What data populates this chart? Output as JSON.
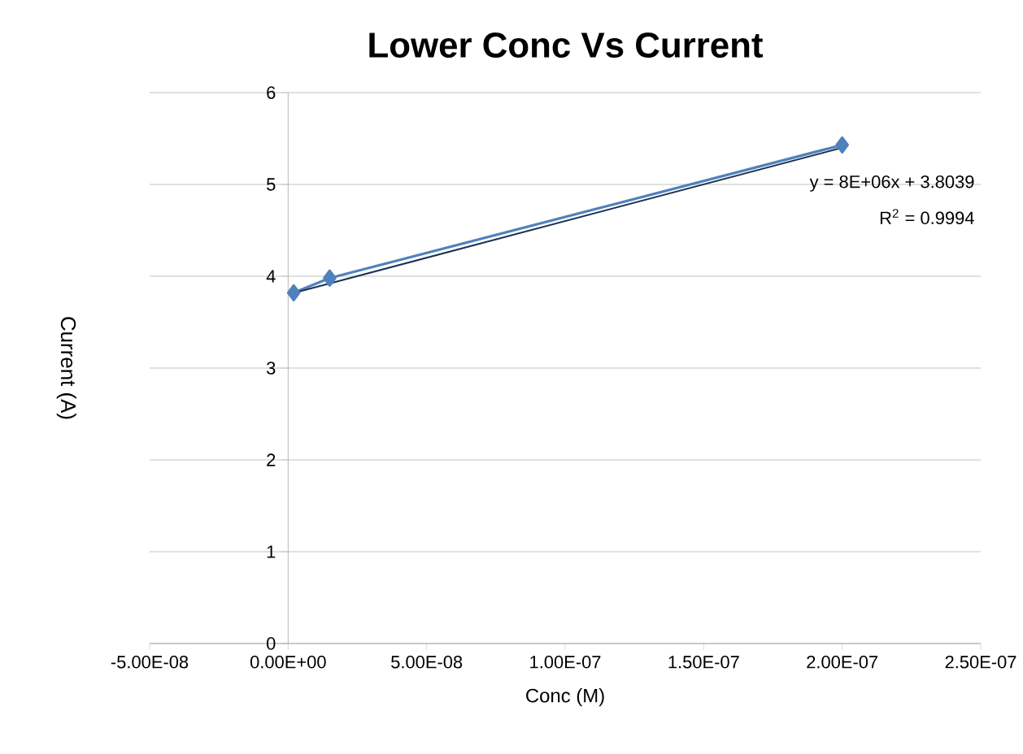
{
  "chart_data": {
    "type": "line",
    "title": "Lower Conc Vs Current",
    "xlabel": "Conc (M)",
    "ylabel": "Current (A)",
    "series": [
      {
        "color": "#4f81bd",
        "x": [
          2e-09,
          1.5e-08,
          2e-07
        ],
        "values": [
          3.82,
          3.98,
          5.43
        ],
        "marker": "diamond"
      },
      {
        "type": "line",
        "color": "#1f3350",
        "x": [
          1e-09,
          2e-07
        ],
        "values": [
          3.81,
          5.4
        ],
        "marker": "none"
      }
    ],
    "xlim": [
      -5e-08,
      2.5e-07
    ],
    "xticks": [
      {
        "value": -5e-08,
        "label": "-5.00E-08"
      },
      {
        "value": 0,
        "label": "0.00E+00"
      },
      {
        "value": 5e-08,
        "label": "5.00E-08"
      },
      {
        "value": 1e-07,
        "label": "1.00E-07"
      },
      {
        "value": 1.5e-07,
        "label": "1.50E-07"
      },
      {
        "value": 2e-07,
        "label": "2.00E-07"
      },
      {
        "value": 2.5e-07,
        "label": "2.50E-07"
      }
    ],
    "ylim": [
      0,
      6
    ],
    "yticks": [
      0,
      1,
      2,
      3,
      4,
      5,
      6
    ],
    "grid": "y",
    "annotations": [
      "y = 8E+06x + 3.8039",
      "R$^{2}$ = 0.9994"
    ]
  }
}
